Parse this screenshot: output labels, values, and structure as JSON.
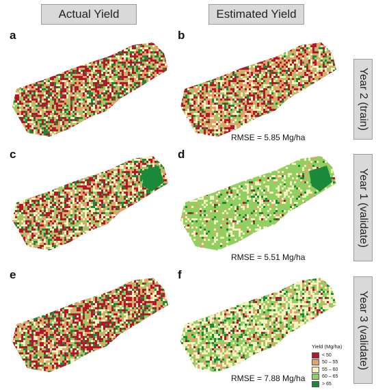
{
  "columns": {
    "actual": "Actual Yield",
    "estimated": "Estimated Yield"
  },
  "rows": [
    {
      "label": "Year 2 (train)"
    },
    {
      "label": "Year 1 (validate)"
    },
    {
      "label": "Year 3 (validate)"
    }
  ],
  "panels": {
    "a": {
      "letter": "a"
    },
    "b": {
      "letter": "b",
      "rmse": "RMSE = 5.85 Mg/ha"
    },
    "c": {
      "letter": "c"
    },
    "d": {
      "letter": "d",
      "rmse": "RMSE = 5.51 Mg/ha"
    },
    "e": {
      "letter": "e"
    },
    "f": {
      "letter": "f",
      "rmse": "RMSE = 7.88 Mg/ha"
    }
  },
  "legend": {
    "title": "Yield (Mg/ha)",
    "classes": [
      {
        "label": "< 50",
        "color": "#b2182b"
      },
      {
        "label": "50 – 55",
        "color": "#e8a06a"
      },
      {
        "label": "55 – 60",
        "color": "#f6f1bf"
      },
      {
        "label": "60 – 65",
        "color": "#91cf60"
      },
      {
        "label": "> 65",
        "color": "#1a8a3a"
      }
    ]
  }
}
